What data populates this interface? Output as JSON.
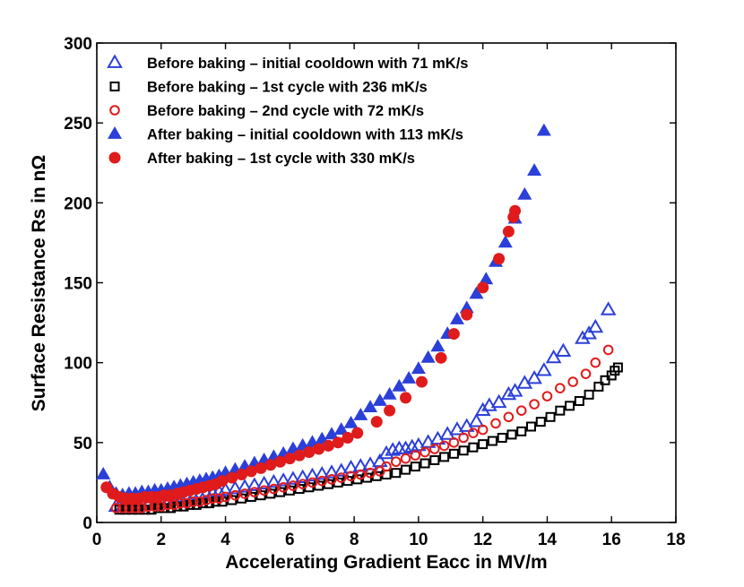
{
  "chart_data": {
    "type": "scatter",
    "xlabel": "Accelerating Gradient Eacc in MV/m",
    "ylabel": "Surface Resistance Rs in nΩ",
    "xlim": [
      0,
      18
    ],
    "ylim": [
      0,
      300
    ],
    "xticks": [
      0,
      2,
      4,
      6,
      8,
      10,
      12,
      14,
      16,
      18
    ],
    "yticks": [
      0,
      50,
      100,
      150,
      200,
      250,
      300
    ],
    "grid": false,
    "legend_position": "top-left",
    "series": [
      {
        "name": "Before baking – initial cooldown with 71 mK/s",
        "marker": "triangle-open",
        "color": "#2b3fd9",
        "x": [
          0.6,
          0.8,
          1.0,
          1.2,
          1.4,
          1.6,
          1.8,
          2.0,
          2.2,
          2.4,
          2.6,
          2.8,
          3.0,
          3.2,
          3.4,
          3.6,
          3.8,
          4.0,
          4.3,
          4.6,
          4.9,
          5.2,
          5.5,
          5.8,
          6.1,
          6.4,
          6.7,
          7.0,
          7.3,
          7.6,
          7.9,
          8.2,
          8.5,
          8.8,
          9.0,
          9.2,
          9.4,
          9.6,
          9.8,
          10.0,
          10.3,
          10.6,
          10.9,
          11.2,
          11.5,
          11.8,
          12.0,
          12.2,
          12.5,
          12.8,
          13.0,
          13.3,
          13.6,
          13.9,
          14.2,
          14.5,
          15.1,
          15.3,
          15.5,
          15.9
        ],
        "y": [
          10,
          10,
          10,
          11,
          11,
          11,
          12,
          12,
          13,
          14,
          15,
          16,
          16,
          17,
          18,
          18,
          19,
          20,
          21,
          22,
          23,
          24,
          25,
          26,
          27,
          28,
          29,
          30,
          31,
          32,
          34,
          35,
          36,
          38,
          43,
          45,
          46,
          46,
          47,
          48,
          50,
          52,
          55,
          58,
          60,
          63,
          70,
          73,
          75,
          80,
          82,
          87,
          90,
          95,
          103,
          107,
          115,
          118,
          122,
          133
        ]
      },
      {
        "name": "Before baking – 1st cycle with 236 mK/s",
        "marker": "square-open",
        "color": "#000000",
        "x": [
          0.7,
          0.9,
          1.1,
          1.3,
          1.5,
          1.7,
          1.9,
          2.1,
          2.3,
          2.5,
          2.7,
          2.9,
          3.1,
          3.3,
          3.5,
          3.7,
          3.9,
          4.2,
          4.5,
          4.8,
          5.1,
          5.4,
          5.7,
          6.0,
          6.3,
          6.6,
          6.9,
          7.2,
          7.5,
          7.8,
          8.1,
          8.4,
          8.7,
          9.0,
          9.3,
          9.6,
          9.9,
          10.2,
          10.5,
          10.8,
          11.1,
          11.4,
          11.7,
          12.0,
          12.3,
          12.6,
          12.9,
          13.2,
          13.5,
          13.8,
          14.1,
          14.4,
          14.7,
          15.0,
          15.3,
          15.6,
          15.8,
          16.0,
          16.1,
          16.2
        ],
        "y": [
          8,
          8,
          8,
          8,
          8,
          8,
          9,
          9,
          9,
          10,
          10,
          11,
          11,
          12,
          12,
          13,
          13,
          14,
          15,
          16,
          17,
          18,
          19,
          20,
          21,
          22,
          23,
          24,
          25,
          26,
          27,
          28,
          29,
          30,
          31,
          33,
          35,
          37,
          39,
          41,
          43,
          45,
          47,
          49,
          51,
          53,
          55,
          57,
          60,
          63,
          66,
          70,
          73,
          76,
          80,
          85,
          89,
          92,
          95,
          97
        ]
      },
      {
        "name": "Before baking – 2nd cycle with 72 mK/s",
        "marker": "circle-open",
        "color": "#e01b1b",
        "x": [
          0.6,
          0.8,
          1.0,
          1.2,
          1.4,
          1.6,
          1.8,
          2.0,
          2.2,
          2.4,
          2.6,
          2.8,
          3.0,
          3.2,
          3.4,
          3.6,
          3.8,
          4.0,
          4.3,
          4.6,
          4.9,
          5.2,
          5.5,
          5.8,
          6.1,
          6.4,
          6.7,
          7.0,
          7.3,
          7.6,
          7.9,
          8.2,
          8.5,
          8.8,
          9.0,
          9.3,
          9.6,
          9.9,
          10.2,
          10.5,
          10.8,
          11.1,
          11.4,
          11.7,
          12.0,
          12.4,
          12.8,
          13.2,
          13.6,
          14.0,
          14.4,
          14.8,
          15.2,
          15.5,
          15.9
        ],
        "y": [
          9,
          9,
          9,
          9,
          9,
          10,
          10,
          10,
          11,
          11,
          12,
          12,
          13,
          13,
          14,
          15,
          15,
          16,
          17,
          18,
          19,
          20,
          21,
          22,
          23,
          24,
          25,
          26,
          27,
          28,
          29,
          30,
          31,
          32,
          35,
          38,
          40,
          42,
          44,
          46,
          48,
          50,
          53,
          56,
          58,
          62,
          66,
          70,
          74,
          79,
          84,
          88,
          93,
          100,
          108
        ]
      },
      {
        "name": "After baking – initial cooldown with 113 mK/s",
        "marker": "triangle-filled",
        "color": "#2b3fd9",
        "x": [
          0.2,
          0.4,
          0.6,
          0.8,
          1.0,
          1.2,
          1.4,
          1.6,
          1.8,
          2.0,
          2.2,
          2.4,
          2.6,
          2.8,
          3.0,
          3.2,
          3.4,
          3.6,
          3.8,
          4.0,
          4.3,
          4.6,
          4.9,
          5.2,
          5.5,
          5.8,
          6.1,
          6.4,
          6.7,
          7.0,
          7.3,
          7.6,
          7.9,
          8.2,
          8.5,
          8.8,
          9.1,
          9.4,
          9.7,
          10.0,
          10.3,
          10.6,
          10.9,
          11.2,
          11.5,
          11.8,
          12.1,
          12.4,
          12.7,
          13.0,
          13.3,
          13.6,
          13.9
        ],
        "y": [
          30,
          22,
          18,
          17,
          18,
          18,
          19,
          19,
          20,
          20,
          21,
          22,
          23,
          24,
          25,
          26,
          27,
          28,
          29,
          31,
          33,
          35,
          37,
          39,
          41,
          43,
          46,
          48,
          50,
          52,
          55,
          58,
          62,
          67,
          72,
          76,
          80,
          85,
          90,
          96,
          103,
          110,
          118,
          127,
          134,
          143,
          152,
          163,
          175,
          190,
          205,
          220,
          245
        ]
      },
      {
        "name": "After baking – 1st cycle with 330 mK/s",
        "marker": "circle-filled",
        "color": "#e01b1b",
        "x": [
          0.3,
          0.5,
          0.7,
          0.9,
          1.1,
          1.3,
          1.5,
          1.7,
          1.9,
          2.1,
          2.3,
          2.5,
          2.7,
          2.9,
          3.1,
          3.3,
          3.5,
          3.7,
          3.9,
          4.2,
          4.5,
          4.8,
          5.1,
          5.4,
          5.7,
          6.0,
          6.3,
          6.6,
          6.9,
          7.2,
          7.5,
          7.8,
          8.1,
          8.7,
          9.1,
          9.6,
          10.1,
          10.7,
          11.1,
          11.5,
          12.0,
          12.5,
          12.8,
          12.95,
          13.0
        ],
        "y": [
          22,
          18,
          16,
          15,
          15,
          15,
          16,
          16,
          16,
          17,
          17,
          18,
          19,
          20,
          21,
          22,
          23,
          24,
          26,
          28,
          30,
          32,
          34,
          36,
          38,
          40,
          42,
          44,
          46,
          48,
          50,
          53,
          56,
          63,
          70,
          78,
          88,
          103,
          118,
          130,
          147,
          165,
          182,
          191,
          195
        ]
      }
    ]
  }
}
